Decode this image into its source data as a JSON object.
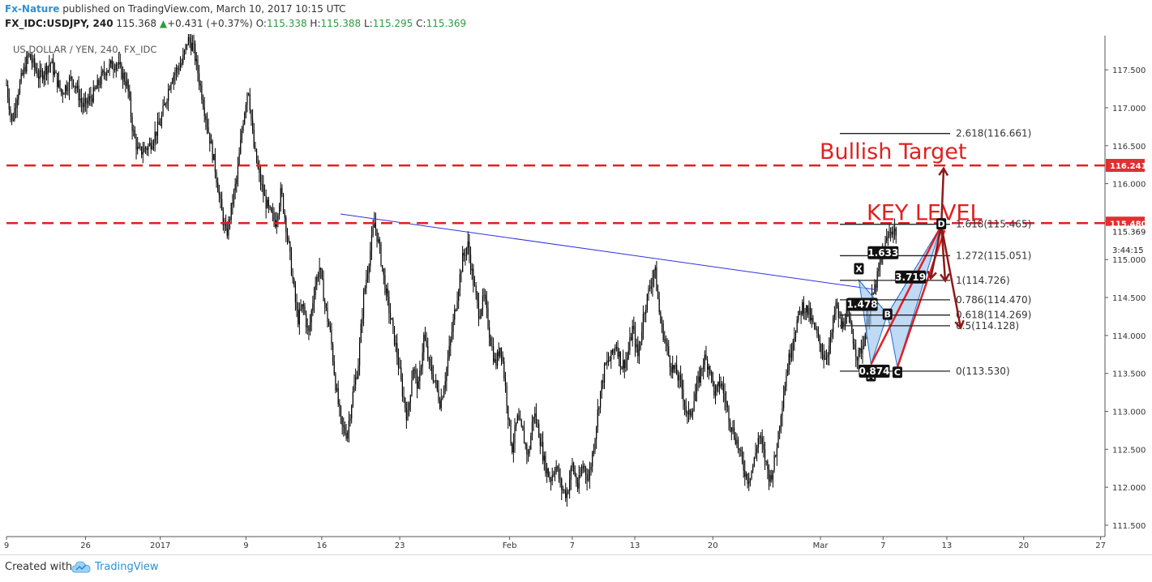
{
  "header": {
    "publisher": "Fx-Nature",
    "published_text": " published on TradingView.com, March 10, 2017 10:15 UTC",
    "symbol": "FX_IDC:USDJPY, 240",
    "last": "115.368",
    "change": "+0.431 (+0.37%)",
    "open_label": "O:",
    "open": "115.338",
    "high_label": "H:",
    "high": "115.388",
    "low_label": "L:",
    "low": "115.295",
    "close_label": "C:",
    "close": "115.369"
  },
  "footer": {
    "created_with": "Created with",
    "brand": "TradingView"
  },
  "colors": {
    "candle": "#000000",
    "level_red": "#e02020",
    "trend_blue": "#3030e0",
    "pattern_fill": "#9ec5ee",
    "pattern_edge": "#1f6fd0",
    "arrow": "#8b1a1a",
    "label_badge": "#111111",
    "price_badge_red": "#e03030"
  },
  "chart_data": {
    "type": "candlestick",
    "legend_text": "US DOLLAR / YEN, 240, FX_IDC",
    "y_range": [
      111.35,
      117.95
    ],
    "y_ticks": [
      111.5,
      112.0,
      112.5,
      113.0,
      113.5,
      114.0,
      114.5,
      115.0,
      115.5,
      116.0,
      116.5,
      117.0,
      117.5
    ],
    "y_tick_labels": [
      "111.500",
      "112.000",
      "112.500",
      "113.000",
      "113.500",
      "114.000",
      "114.500",
      "115.000",
      "115.500",
      "116.000",
      "116.500",
      "117.000",
      "117.500"
    ],
    "x_labels": [
      {
        "text": "9",
        "pos": 0
      },
      {
        "text": "26",
        "pos": 0.072
      },
      {
        "text": "2017",
        "pos": 0.14
      },
      {
        "text": "9",
        "pos": 0.218
      },
      {
        "text": "16",
        "pos": 0.287
      },
      {
        "text": "23",
        "pos": 0.358
      },
      {
        "text": "Feb",
        "pos": 0.458
      },
      {
        "text": "7",
        "pos": 0.515
      },
      {
        "text": "13",
        "pos": 0.572
      },
      {
        "text": "20",
        "pos": 0.643
      },
      {
        "text": "Mar",
        "pos": 0.741
      },
      {
        "text": "7",
        "pos": 0.798
      },
      {
        "text": "13",
        "pos": 0.856
      },
      {
        "text": "20",
        "pos": 0.926
      },
      {
        "text": "27",
        "pos": 0.996
      }
    ],
    "price_path": [
      [
        0,
        117.3
      ],
      [
        0.005,
        116.8
      ],
      [
        0.01,
        117.2
      ],
      [
        0.02,
        117.7
      ],
      [
        0.03,
        117.4
      ],
      [
        0.04,
        117.6
      ],
      [
        0.05,
        117.2
      ],
      [
        0.06,
        117.4
      ],
      [
        0.07,
        117.0
      ],
      [
        0.08,
        117.2
      ],
      [
        0.09,
        117.5
      ],
      [
        0.1,
        117.6
      ],
      [
        0.11,
        117.3
      ],
      [
        0.115,
        116.7
      ],
      [
        0.12,
        116.4
      ],
      [
        0.13,
        116.5
      ],
      [
        0.14,
        116.8
      ],
      [
        0.145,
        117.1
      ],
      [
        0.15,
        117.4
      ],
      [
        0.16,
        117.6
      ],
      [
        0.165,
        117.9
      ],
      [
        0.17,
        117.8
      ],
      [
        0.175,
        117.4
      ],
      [
        0.18,
        117.0
      ],
      [
        0.185,
        116.6
      ],
      [
        0.19,
        116.2
      ],
      [
        0.195,
        115.7
      ],
      [
        0.2,
        115.3
      ],
      [
        0.205,
        115.7
      ],
      [
        0.21,
        116.1
      ],
      [
        0.215,
        116.8
      ],
      [
        0.22,
        117.3
      ],
      [
        0.225,
        116.5
      ],
      [
        0.23,
        116.1
      ],
      [
        0.235,
        115.8
      ],
      [
        0.24,
        115.6
      ],
      [
        0.245,
        115.5
      ],
      [
        0.25,
        115.9
      ],
      [
        0.255,
        115.4
      ],
      [
        0.26,
        114.8
      ],
      [
        0.265,
        114.2
      ],
      [
        0.27,
        114.4
      ],
      [
        0.275,
        114.0
      ],
      [
        0.28,
        114.6
      ],
      [
        0.285,
        114.9
      ],
      [
        0.29,
        114.4
      ],
      [
        0.295,
        114.0
      ],
      [
        0.3,
        113.3
      ],
      [
        0.305,
        112.8
      ],
      [
        0.31,
        112.7
      ],
      [
        0.315,
        113.2
      ],
      [
        0.32,
        113.6
      ],
      [
        0.325,
        114.5
      ],
      [
        0.33,
        115.0
      ],
      [
        0.335,
        115.5
      ],
      [
        0.34,
        115.1
      ],
      [
        0.345,
        114.6
      ],
      [
        0.35,
        114.2
      ],
      [
        0.355,
        113.8
      ],
      [
        0.36,
        113.3
      ],
      [
        0.365,
        112.9
      ],
      [
        0.37,
        113.6
      ],
      [
        0.375,
        113.3
      ],
      [
        0.38,
        114.0
      ],
      [
        0.385,
        113.6
      ],
      [
        0.39,
        113.4
      ],
      [
        0.395,
        113.1
      ],
      [
        0.4,
        113.5
      ],
      [
        0.405,
        114.0
      ],
      [
        0.41,
        114.5
      ],
      [
        0.415,
        115.0
      ],
      [
        0.42,
        115.2
      ],
      [
        0.425,
        114.7
      ],
      [
        0.43,
        114.3
      ],
      [
        0.435,
        114.5
      ],
      [
        0.44,
        114.0
      ],
      [
        0.445,
        113.6
      ],
      [
        0.45,
        113.9
      ],
      [
        0.455,
        113.2
      ],
      [
        0.46,
        112.5
      ],
      [
        0.465,
        112.9
      ],
      [
        0.47,
        112.7
      ],
      [
        0.475,
        112.4
      ],
      [
        0.48,
        113.0
      ],
      [
        0.485,
        112.7
      ],
      [
        0.49,
        112.3
      ],
      [
        0.495,
        112.1
      ],
      [
        0.5,
        112.3
      ],
      [
        0.505,
        112.0
      ],
      [
        0.51,
        111.9
      ],
      [
        0.515,
        112.3
      ],
      [
        0.52,
        112.0
      ],
      [
        0.525,
        112.3
      ],
      [
        0.53,
        112.1
      ],
      [
        0.535,
        112.6
      ],
      [
        0.54,
        113.2
      ],
      [
        0.545,
        113.6
      ],
      [
        0.55,
        113.7
      ],
      [
        0.555,
        113.9
      ],
      [
        0.56,
        113.6
      ],
      [
        0.565,
        113.7
      ],
      [
        0.57,
        114.1
      ],
      [
        0.575,
        113.7
      ],
      [
        0.58,
        114.3
      ],
      [
        0.585,
        114.6
      ],
      [
        0.59,
        114.9
      ],
      [
        0.595,
        114.2
      ],
      [
        0.6,
        113.9
      ],
      [
        0.605,
        113.6
      ],
      [
        0.61,
        113.5
      ],
      [
        0.615,
        113.3
      ],
      [
        0.62,
        112.9
      ],
      [
        0.625,
        113.1
      ],
      [
        0.63,
        113.4
      ],
      [
        0.635,
        113.7
      ],
      [
        0.64,
        113.6
      ],
      [
        0.645,
        113.2
      ],
      [
        0.65,
        113.4
      ],
      [
        0.655,
        113.1
      ],
      [
        0.66,
        112.8
      ],
      [
        0.665,
        112.6
      ],
      [
        0.67,
        112.3
      ],
      [
        0.675,
        112.1
      ],
      [
        0.68,
        112.3
      ],
      [
        0.685,
        112.7
      ],
      [
        0.69,
        112.4
      ],
      [
        0.695,
        112.1
      ],
      [
        0.7,
        112.4
      ],
      [
        0.705,
        113.0
      ],
      [
        0.71,
        113.5
      ],
      [
        0.715,
        113.9
      ],
      [
        0.72,
        114.2
      ],
      [
        0.725,
        114.4
      ],
      [
        0.73,
        114.3
      ],
      [
        0.735,
        114.1
      ],
      [
        0.74,
        113.9
      ],
      [
        0.745,
        113.7
      ],
      [
        0.75,
        113.9
      ],
      [
        0.755,
        114.4
      ],
      [
        0.76,
        114.1
      ],
      [
        0.765,
        114.3
      ],
      [
        0.77,
        114.0
      ],
      [
        0.775,
        113.7
      ],
      [
        0.78,
        113.9
      ],
      [
        0.785,
        114.3
      ],
      [
        0.79,
        114.6
      ],
      [
        0.795,
        114.9
      ],
      [
        0.8,
        115.2
      ],
      [
        0.805,
        115.4
      ],
      [
        0.81,
        115.37
      ]
    ],
    "levels": [
      {
        "price": 116.24,
        "style": "dashed",
        "label": "Bullish Target"
      },
      {
        "price": 115.48,
        "style": "dashed",
        "label": "KEY LEVEL"
      }
    ],
    "trendline": {
      "from": [
        0.304,
        115.6
      ],
      "to": [
        0.793,
        114.6
      ]
    },
    "fib_levels": [
      {
        "ratio": "2.618",
        "price": 116.661,
        "text": "2.618(116.661)"
      },
      {
        "ratio": "1.618",
        "price": 115.465,
        "text": "1.618(115.465)"
      },
      {
        "ratio": "1.272",
        "price": 115.051,
        "text": "1.272(115.051)"
      },
      {
        "ratio": "1",
        "price": 114.726,
        "text": "1(114.726)"
      },
      {
        "ratio": "0.786",
        "price": 114.47,
        "text": "0.786(114.470)"
      },
      {
        "ratio": "0.618",
        "price": 114.269,
        "text": "0.618(114.269)"
      },
      {
        "ratio": "0.5",
        "price": 114.128,
        "text": "0.5(114.128)"
      },
      {
        "ratio": "0",
        "price": 113.53,
        "text": "0(113.530)"
      }
    ],
    "harmonic_points": [
      {
        "label": "X",
        "pos": 0.776,
        "price": 114.73
      },
      {
        "label": "A",
        "pos": 0.787,
        "price": 113.62
      },
      {
        "label": "B",
        "pos": 0.802,
        "price": 114.28
      },
      {
        "label": "C",
        "pos": 0.811,
        "price": 113.58
      },
      {
        "label": "D",
        "pos": 0.851,
        "price": 115.45
      }
    ],
    "ratio_badges": [
      {
        "text": "1.633",
        "pos": 0.798,
        "price": 115.09
      },
      {
        "text": "3.719",
        "pos": 0.823,
        "price": 114.77
      },
      {
        "text": "1.478",
        "pos": 0.779,
        "price": 114.41
      },
      {
        "text": "0.874",
        "pos": 0.79,
        "price": 113.53
      }
    ],
    "price_badges": [
      {
        "text": "116.241",
        "price": 116.241,
        "kind": "red"
      },
      {
        "text": "115.480",
        "price": 115.48,
        "kind": "red"
      },
      {
        "text": "115.369",
        "price": 115.369,
        "kind": "plain"
      },
      {
        "text": "3:44:15",
        "price": 115.13,
        "kind": "plain"
      }
    ]
  }
}
